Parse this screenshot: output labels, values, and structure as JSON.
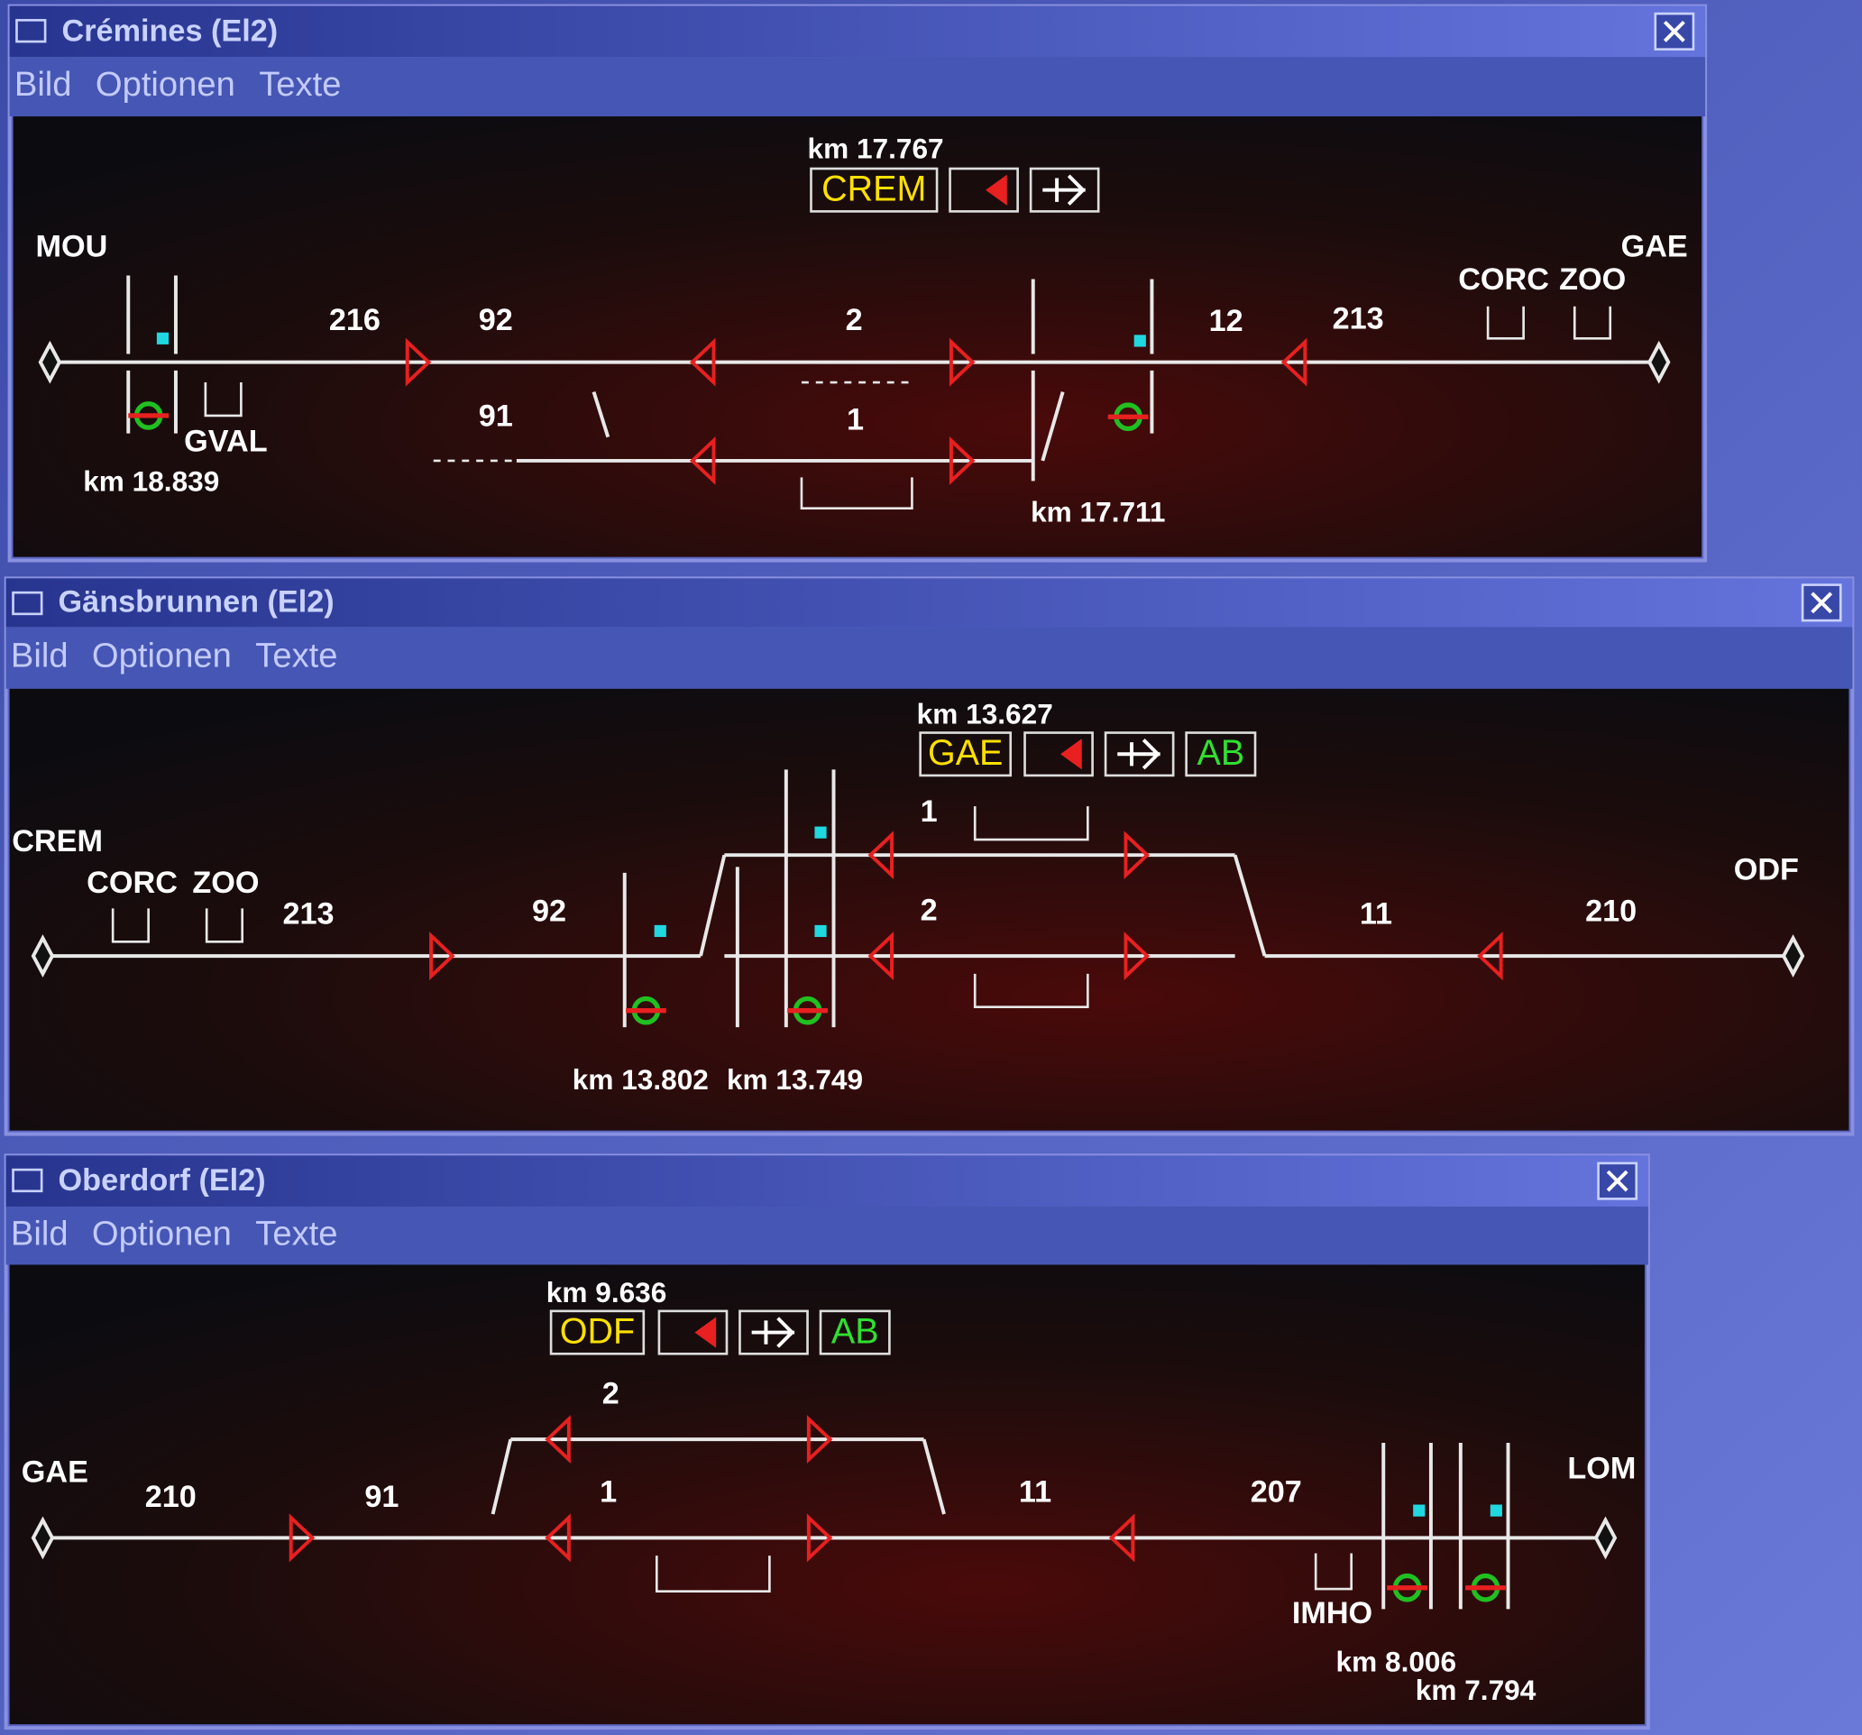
{
  "windows": [
    {
      "title": "Crémines (El2)",
      "menu": [
        "Bild",
        "Optionen",
        "Texte"
      ],
      "km": "km 17.767",
      "station": "CREM",
      "labels": [
        "MOU",
        "GAE",
        "CORC",
        "ZOO",
        "216",
        "92",
        "2",
        "12",
        "213",
        "91",
        "1",
        "GVAL",
        "km 18.839",
        "km 17.711"
      ]
    },
    {
      "title": "Gänsbrunnen (El2)",
      "menu": [
        "Bild",
        "Optionen",
        "Texte"
      ],
      "km": "km 13.627",
      "station": "GAE",
      "button": "AB",
      "labels": [
        "CREM",
        "CORC",
        "ZOO",
        "213",
        "92",
        "1",
        "2",
        "11",
        "210",
        "ODF",
        "km 13.802",
        "km 13.749"
      ]
    },
    {
      "title": "Oberdorf (El2)",
      "menu": [
        "Bild",
        "Optionen",
        "Texte"
      ],
      "km": "km 9.636",
      "station": "ODF",
      "button": "AB",
      "labels": [
        "GAE",
        "210",
        "91",
        "2",
        "1",
        "11",
        "207",
        "LOM",
        "IMHO",
        "km 8.006",
        "km 7.794"
      ]
    }
  ]
}
